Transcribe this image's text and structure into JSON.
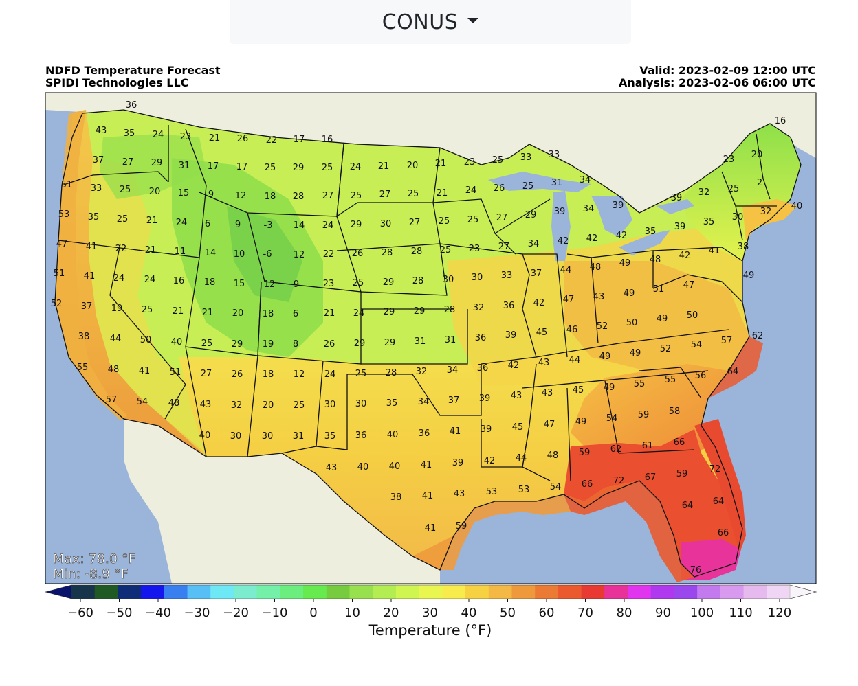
{
  "region_dropdown": {
    "selected": "CONUS"
  },
  "header": {
    "title": "NDFD Temperature Forecast",
    "org": "SPIDI Technologies LLC",
    "valid": "Valid: 2023-02-09 12:00 UTC",
    "analysis": "Analysis: 2023-02-06 06:00 UTC"
  },
  "stats": {
    "max": "Max: 78.0 °F",
    "min": "Min: -8.9 °F"
  },
  "colorbar": {
    "label": "Temperature (°F)",
    "ticks": [
      "−60",
      "−50",
      "−40",
      "−30",
      "−20",
      "−10",
      "0",
      "10",
      "20",
      "30",
      "40",
      "50",
      "60",
      "70",
      "80",
      "90",
      "100",
      "110",
      "120"
    ],
    "colors": [
      "#09136b",
      "#16344a",
      "#1f5a24",
      "#0f2c78",
      "#1515ee",
      "#3a7ff0",
      "#58bff6",
      "#6fe8f6",
      "#7beccd",
      "#74f0a8",
      "#6cee7e",
      "#66ea4e",
      "#76cc3e",
      "#98e04e",
      "#b4ed52",
      "#cff550",
      "#eaf650",
      "#f7ec4c",
      "#f6d142",
      "#f4b844",
      "#ee9a3c",
      "#ea7a34",
      "#ea5a2e",
      "#e83a32",
      "#e8329a",
      "#e034ee",
      "#b038ee",
      "#9a48ee",
      "#c27aee",
      "#d89aee",
      "#e6baee",
      "#eed6f4",
      "#f8f4fa"
    ]
  },
  "stations": [
    {
      "t": "36"
    },
    {
      "t": "43"
    },
    {
      "t": "35"
    },
    {
      "t": "24"
    },
    {
      "t": "23"
    },
    {
      "t": "21"
    },
    {
      "t": "26"
    },
    {
      "t": "22"
    },
    {
      "t": "17"
    },
    {
      "t": "16"
    },
    {
      "t": "16"
    },
    {
      "t": "37"
    },
    {
      "t": "27"
    },
    {
      "t": "29"
    },
    {
      "t": "31"
    },
    {
      "t": "17"
    },
    {
      "t": "17"
    },
    {
      "t": "25"
    },
    {
      "t": "29"
    },
    {
      "t": "25"
    },
    {
      "t": "24"
    },
    {
      "t": "21"
    },
    {
      "t": "20"
    },
    {
      "t": "21"
    },
    {
      "t": "23"
    },
    {
      "t": "25"
    },
    {
      "t": "33"
    },
    {
      "t": "33"
    },
    {
      "t": "23"
    },
    {
      "t": "20"
    },
    {
      "t": "51"
    },
    {
      "t": "33"
    },
    {
      "t": "25"
    },
    {
      "t": "20"
    },
    {
      "t": "15"
    },
    {
      "t": "9"
    },
    {
      "t": "12"
    },
    {
      "t": "18"
    },
    {
      "t": "28"
    },
    {
      "t": "27"
    },
    {
      "t": "25"
    },
    {
      "t": "27"
    },
    {
      "t": "25"
    },
    {
      "t": "21"
    },
    {
      "t": "24"
    },
    {
      "t": "26"
    },
    {
      "t": "25"
    },
    {
      "t": "31"
    },
    {
      "t": "34"
    },
    {
      "t": "39"
    },
    {
      "t": "32"
    },
    {
      "t": "25"
    },
    {
      "t": "2"
    },
    {
      "t": "53"
    },
    {
      "t": "35"
    },
    {
      "t": "25"
    },
    {
      "t": "21"
    },
    {
      "t": "24"
    },
    {
      "t": "6"
    },
    {
      "t": "9"
    },
    {
      "t": "-3"
    },
    {
      "t": "14"
    },
    {
      "t": "24"
    },
    {
      "t": "29"
    },
    {
      "t": "30"
    },
    {
      "t": "27"
    },
    {
      "t": "25"
    },
    {
      "t": "25"
    },
    {
      "t": "27"
    },
    {
      "t": "29"
    },
    {
      "t": "39"
    },
    {
      "t": "34"
    },
    {
      "t": "39"
    },
    {
      "t": "30"
    },
    {
      "t": "32"
    },
    {
      "t": "40"
    },
    {
      "t": "47"
    },
    {
      "t": "41"
    },
    {
      "t": "22"
    },
    {
      "t": "21"
    },
    {
      "t": "11"
    },
    {
      "t": "14"
    },
    {
      "t": "10"
    },
    {
      "t": "-6"
    },
    {
      "t": "12"
    },
    {
      "t": "22"
    },
    {
      "t": "26"
    },
    {
      "t": "28"
    },
    {
      "t": "28"
    },
    {
      "t": "25"
    },
    {
      "t": "23"
    },
    {
      "t": "27"
    },
    {
      "t": "34"
    },
    {
      "t": "42"
    },
    {
      "t": "42"
    },
    {
      "t": "42"
    },
    {
      "t": "35"
    },
    {
      "t": "39"
    },
    {
      "t": "35"
    },
    {
      "t": "51"
    },
    {
      "t": "41"
    },
    {
      "t": "24"
    },
    {
      "t": "24"
    },
    {
      "t": "16"
    },
    {
      "t": "18"
    },
    {
      "t": "15"
    },
    {
      "t": "12"
    },
    {
      "t": "9"
    },
    {
      "t": "23"
    },
    {
      "t": "25"
    },
    {
      "t": "29"
    },
    {
      "t": "28"
    },
    {
      "t": "30"
    },
    {
      "t": "30"
    },
    {
      "t": "33"
    },
    {
      "t": "37"
    },
    {
      "t": "44"
    },
    {
      "t": "48"
    },
    {
      "t": "49"
    },
    {
      "t": "48"
    },
    {
      "t": "42"
    },
    {
      "t": "41"
    },
    {
      "t": "38"
    },
    {
      "t": "49"
    },
    {
      "t": "52"
    },
    {
      "t": "37"
    },
    {
      "t": "19"
    },
    {
      "t": "25"
    },
    {
      "t": "21"
    },
    {
      "t": "21"
    },
    {
      "t": "20"
    },
    {
      "t": "18"
    },
    {
      "t": "6"
    },
    {
      "t": "21"
    },
    {
      "t": "24"
    },
    {
      "t": "29"
    },
    {
      "t": "29"
    },
    {
      "t": "28"
    },
    {
      "t": "32"
    },
    {
      "t": "36"
    },
    {
      "t": "42"
    },
    {
      "t": "47"
    },
    {
      "t": "43"
    },
    {
      "t": "49"
    },
    {
      "t": "51"
    },
    {
      "t": "47"
    },
    {
      "t": "38"
    },
    {
      "t": "44"
    },
    {
      "t": "50"
    },
    {
      "t": "40"
    },
    {
      "t": "25"
    },
    {
      "t": "29"
    },
    {
      "t": "19"
    },
    {
      "t": "8"
    },
    {
      "t": "26"
    },
    {
      "t": "29"
    },
    {
      "t": "29"
    },
    {
      "t": "31"
    },
    {
      "t": "31"
    },
    {
      "t": "36"
    },
    {
      "t": "39"
    },
    {
      "t": "45"
    },
    {
      "t": "46"
    },
    {
      "t": "52"
    },
    {
      "t": "50"
    },
    {
      "t": "49"
    },
    {
      "t": "50"
    },
    {
      "t": "55"
    },
    {
      "t": "48"
    },
    {
      "t": "41"
    },
    {
      "t": "51"
    },
    {
      "t": "27"
    },
    {
      "t": "26"
    },
    {
      "t": "18"
    },
    {
      "t": "12"
    },
    {
      "t": "24"
    },
    {
      "t": "25"
    },
    {
      "t": "28"
    },
    {
      "t": "32"
    },
    {
      "t": "34"
    },
    {
      "t": "36"
    },
    {
      "t": "42"
    },
    {
      "t": "43"
    },
    {
      "t": "44"
    },
    {
      "t": "49"
    },
    {
      "t": "49"
    },
    {
      "t": "52"
    },
    {
      "t": "54"
    },
    {
      "t": "57"
    },
    {
      "t": "62"
    },
    {
      "t": "64"
    },
    {
      "t": "57"
    },
    {
      "t": "54"
    },
    {
      "t": "48"
    },
    {
      "t": "43"
    },
    {
      "t": "32"
    },
    {
      "t": "20"
    },
    {
      "t": "25"
    },
    {
      "t": "30"
    },
    {
      "t": "30"
    },
    {
      "t": "35"
    },
    {
      "t": "34"
    },
    {
      "t": "37"
    },
    {
      "t": "39"
    },
    {
      "t": "43"
    },
    {
      "t": "43"
    },
    {
      "t": "45"
    },
    {
      "t": "49"
    },
    {
      "t": "55"
    },
    {
      "t": "55"
    },
    {
      "t": "56"
    },
    {
      "t": "40"
    },
    {
      "t": "30"
    },
    {
      "t": "30"
    },
    {
      "t": "31"
    },
    {
      "t": "35"
    },
    {
      "t": "36"
    },
    {
      "t": "40"
    },
    {
      "t": "36"
    },
    {
      "t": "41"
    },
    {
      "t": "39"
    },
    {
      "t": "45"
    },
    {
      "t": "47"
    },
    {
      "t": "49"
    },
    {
      "t": "54"
    },
    {
      "t": "59"
    },
    {
      "t": "58"
    },
    {
      "t": "43"
    },
    {
      "t": "40"
    },
    {
      "t": "40"
    },
    {
      "t": "41"
    },
    {
      "t": "39"
    },
    {
      "t": "42"
    },
    {
      "t": "44"
    },
    {
      "t": "48"
    },
    {
      "t": "59"
    },
    {
      "t": "62"
    },
    {
      "t": "61"
    },
    {
      "t": "66"
    },
    {
      "t": "38"
    },
    {
      "t": "41"
    },
    {
      "t": "43"
    },
    {
      "t": "53"
    },
    {
      "t": "53"
    },
    {
      "t": "54"
    },
    {
      "t": "66"
    },
    {
      "t": "72"
    },
    {
      "t": "67"
    },
    {
      "t": "59"
    },
    {
      "t": "72"
    },
    {
      "t": "41"
    },
    {
      "t": "59"
    },
    {
      "t": "64"
    },
    {
      "t": "64"
    },
    {
      "t": "66"
    },
    {
      "t": "76"
    }
  ]
}
